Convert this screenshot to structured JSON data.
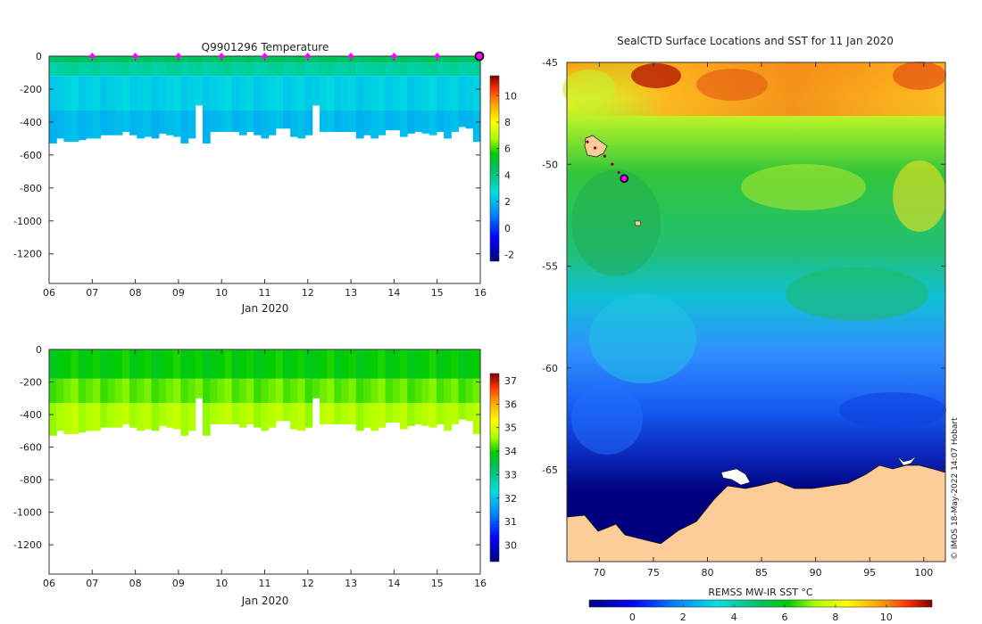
{
  "chart_data": [
    {
      "type": "heatmap",
      "title": "Q9901296  Temperature",
      "variable": "temperature",
      "xlabel": "Jan 2020",
      "ylabel": "",
      "x_ticks": [
        "06",
        "07",
        "08",
        "09",
        "10",
        "11",
        "12",
        "13",
        "14",
        "15",
        "16"
      ],
      "x_range": [
        6,
        16
      ],
      "y_ticks": [
        "0",
        "-200",
        "-400",
        "-600",
        "-800",
        "-1000",
        "-1200"
      ],
      "ylim": [
        -1380,
        0
      ],
      "colorbar": {
        "ticks": [
          "10",
          "8",
          "6",
          "4",
          "2",
          "0",
          "-2"
        ],
        "range": [
          -2.5,
          11.5
        ]
      },
      "profile_markers_day": [
        7,
        8,
        9,
        10,
        11,
        12,
        13,
        14,
        15
      ],
      "current_day": 16,
      "profile_depths": [
        -530,
        -500,
        -520,
        -520,
        -510,
        -500,
        -500,
        -480,
        -480,
        -480,
        -460,
        -480,
        -500,
        -490,
        -500,
        -470,
        -480,
        -490,
        -530,
        -500,
        -300,
        -530,
        -460,
        -460,
        -460,
        -460,
        -480,
        -460,
        -480,
        -500,
        -480,
        -440,
        -440,
        -490,
        -500,
        -480,
        -300,
        -460,
        -460,
        -460,
        -460,
        -460,
        -500,
        -480,
        -500,
        -480,
        -450,
        -450,
        -490,
        -470,
        -460,
        -470,
        -480,
        -460,
        -500,
        -460,
        -430,
        -440,
        -520
      ],
      "layers": [
        {
          "depth_top": 0,
          "depth_bottom": -40,
          "value": 4.5
        },
        {
          "depth_top": -40,
          "depth_bottom": -120,
          "value": 3.6
        },
        {
          "depth_top": -120,
          "depth_bottom": -330,
          "value": 2.4
        },
        {
          "depth_top": -330,
          "depth_bottom": -600,
          "value": 2.0
        }
      ]
    },
    {
      "type": "heatmap",
      "title": "",
      "variable": "salinity",
      "xlabel": "Jan 2020",
      "ylabel": "",
      "x_ticks": [
        "06",
        "07",
        "08",
        "09",
        "10",
        "11",
        "12",
        "13",
        "14",
        "15",
        "16"
      ],
      "x_range": [
        6,
        16
      ],
      "y_ticks": [
        "0",
        "-200",
        "-400",
        "-600",
        "-800",
        "-1000",
        "-1200"
      ],
      "ylim": [
        -1380,
        0
      ],
      "colorbar": {
        "ticks": [
          "37",
          "36",
          "35",
          "34",
          "33",
          "32",
          "31",
          "30"
        ],
        "range": [
          29.3,
          37.3
        ]
      },
      "layers": [
        {
          "depth_top": 0,
          "depth_bottom": -180,
          "value": 33.9
        },
        {
          "depth_top": -180,
          "depth_bottom": -330,
          "value": 34.3
        },
        {
          "depth_top": -330,
          "depth_bottom": -600,
          "value": 34.65
        }
      ]
    },
    {
      "type": "heatmap",
      "title": "SealCTD Surface Locations and SST for 11 Jan 2020",
      "xlabel": "REMSS MW-IR SST °C",
      "x_ticks": [
        "70",
        "75",
        "80",
        "85",
        "90",
        "95",
        "100"
      ],
      "x_range": [
        67,
        102
      ],
      "y_ticks": [
        "-45",
        "-50",
        "-55",
        "-60",
        "-65"
      ],
      "ylim": [
        -69.5,
        -45
      ],
      "colorbar": {
        "ticks": [
          "0",
          "2",
          "4",
          "6",
          "8",
          "10"
        ],
        "range": [
          -1.7,
          11.8
        ]
      },
      "seal_track": [
        [
          68.9,
          -48.9
        ],
        [
          69.6,
          -49.2
        ],
        [
          70.5,
          -49.6
        ],
        [
          71.2,
          -50.0
        ],
        [
          71.8,
          -50.4
        ],
        [
          72.3,
          -50.7
        ]
      ],
      "seal_position": [
        72.3,
        -50.7
      ],
      "credit": "© IMOS 18-May-2022 14:07 Hobart"
    }
  ]
}
